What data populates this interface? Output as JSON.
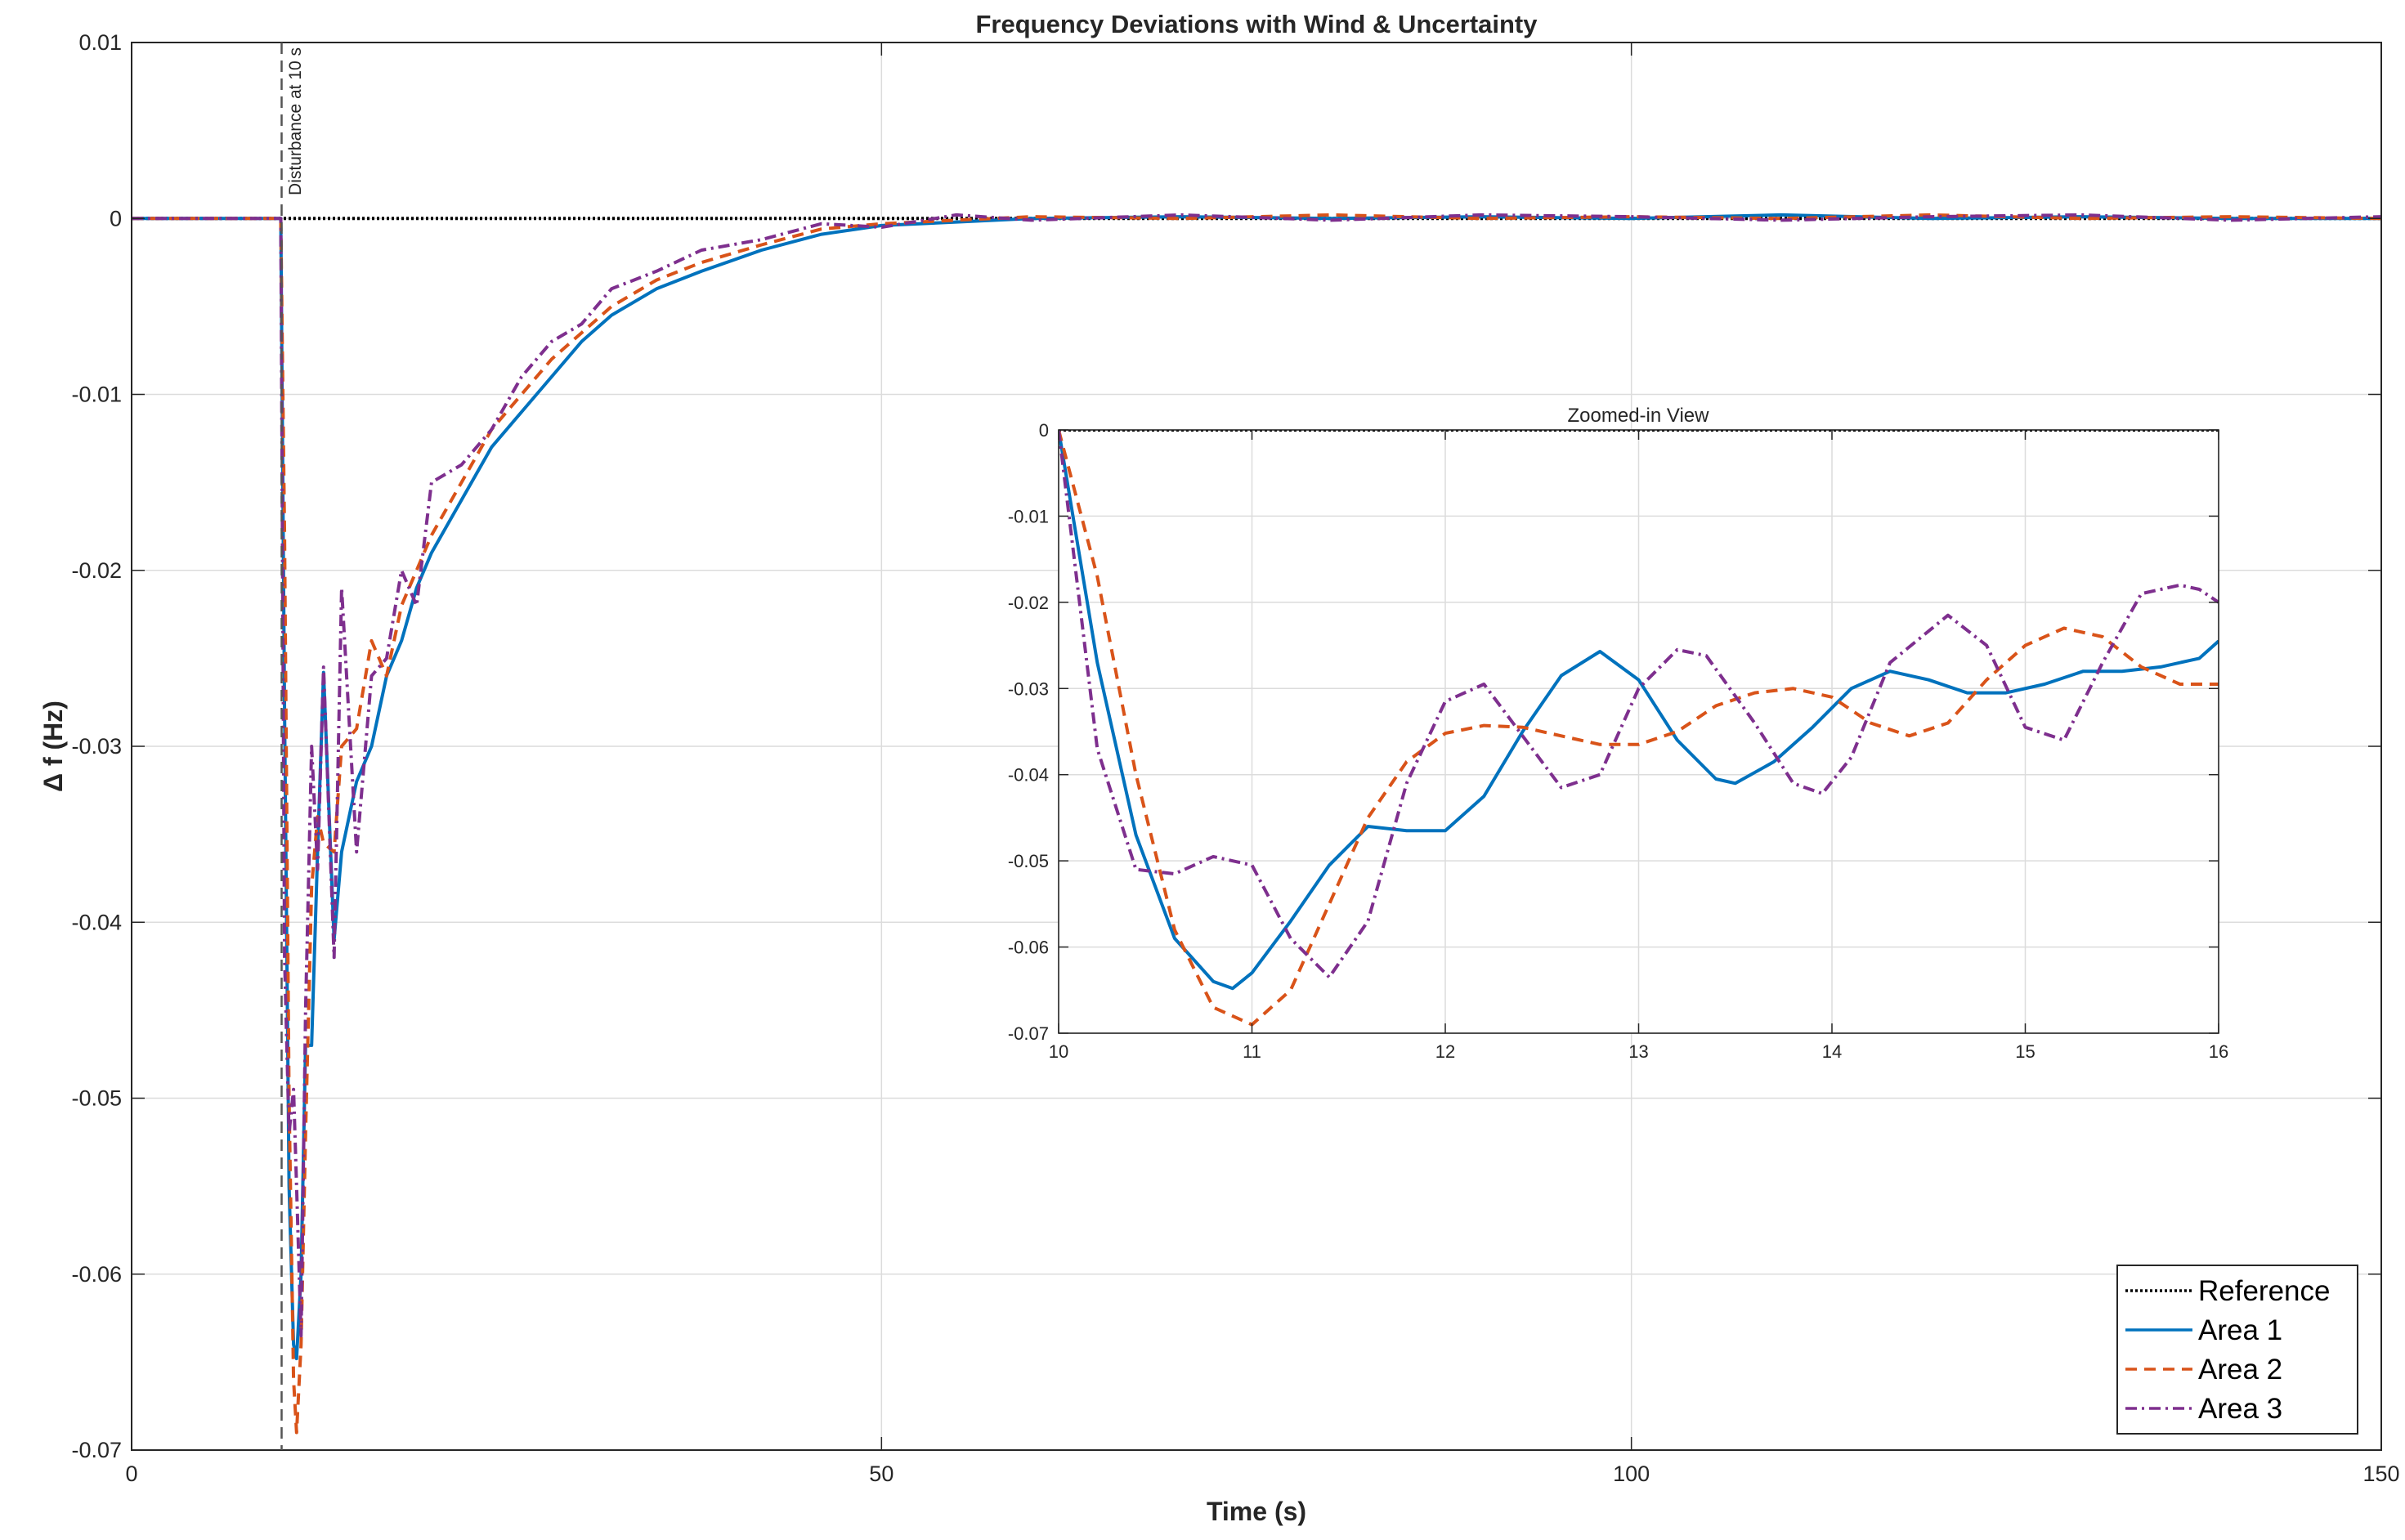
{
  "chart_data": [
    {
      "type": "line",
      "title": "Frequency Deviations with Wind & Uncertainty",
      "xlabel": "Time (s)",
      "ylabel": "Δ f (Hz)",
      "xlim": [
        0,
        150
      ],
      "ylim": [
        -0.07,
        0.01
      ],
      "xticks": [
        0,
        50,
        100,
        150
      ],
      "xtick_labels": [
        "0",
        "50",
        "100",
        "150"
      ],
      "yticks": [
        0.01,
        0,
        -0.01,
        -0.02,
        -0.03,
        -0.04,
        -0.05,
        -0.06,
        -0.07
      ],
      "ytick_labels": [
        "0.01",
        "0",
        "-0.01",
        "-0.02",
        "-0.03",
        "-0.04",
        "-0.05",
        "-0.06",
        "-0.07"
      ],
      "grid": true,
      "legend_position": "bottom-right",
      "annotation": {
        "text": "Disturbance at 10 s",
        "x": 10
      },
      "series": [
        {
          "name": "Reference",
          "color": "#000000",
          "style": "dotted",
          "x": [
            0,
            150
          ],
          "y": [
            0,
            0
          ]
        },
        {
          "name": "Area 1",
          "color": "#0072BD",
          "style": "solid",
          "x": [
            0,
            9.95,
            10.2,
            10.5,
            10.8,
            11.0,
            11.3,
            11.6,
            12.0,
            12.4,
            12.8,
            13.5,
            14,
            15,
            16,
            17,
            18,
            19,
            20,
            22,
            24,
            26,
            28,
            30,
            32,
            35,
            38,
            42,
            46,
            50,
            55,
            60,
            70,
            80,
            90,
            100,
            110,
            120,
            130,
            140,
            150
          ],
          "y": [
            0,
            0,
            -0.028,
            -0.055,
            -0.064,
            -0.0648,
            -0.06,
            -0.047,
            -0.047,
            -0.036,
            -0.0258,
            -0.041,
            -0.036,
            -0.032,
            -0.03,
            -0.026,
            -0.024,
            -0.021,
            -0.019,
            -0.016,
            -0.013,
            -0.011,
            -0.009,
            -0.007,
            -0.0055,
            -0.004,
            -0.003,
            -0.0018,
            -0.0009,
            -0.0004,
            -0.0002,
            0,
            0.0001,
            0,
            0.0001,
            0,
            0.0002,
            0,
            0.0001,
            0,
            0
          ]
        },
        {
          "name": "Area 2",
          "color": "#D95319",
          "style": "dashed",
          "x": [
            0,
            9.95,
            10.2,
            10.5,
            10.8,
            11.0,
            11.3,
            11.6,
            12.0,
            12.4,
            12.8,
            13.5,
            14,
            15,
            16,
            17,
            18,
            19,
            20,
            22,
            24,
            26,
            28,
            30,
            32,
            35,
            38,
            42,
            46,
            50,
            55,
            60,
            70,
            80,
            90,
            100,
            110,
            120,
            130,
            140,
            150
          ],
          "y": [
            0,
            0,
            -0.018,
            -0.05,
            -0.066,
            -0.069,
            -0.064,
            -0.052,
            -0.038,
            -0.034,
            -0.0355,
            -0.036,
            -0.03,
            -0.029,
            -0.024,
            -0.026,
            -0.022,
            -0.02,
            -0.018,
            -0.015,
            -0.012,
            -0.01,
            -0.008,
            -0.0065,
            -0.005,
            -0.0035,
            -0.0025,
            -0.0015,
            -0.0006,
            -0.0003,
            -0.0001,
            0.0001,
            0,
            0.0002,
            0,
            0.0001,
            0,
            0.0002,
            0,
            0.0001,
            0
          ]
        },
        {
          "name": "Area 3",
          "color": "#7E2F8E",
          "style": "dashdot",
          "x": [
            0,
            9.95,
            10.2,
            10.5,
            10.8,
            11.0,
            11.3,
            11.6,
            12.0,
            12.4,
            12.8,
            13.5,
            14,
            15,
            16,
            17,
            18,
            19,
            20,
            22,
            24,
            26,
            28,
            30,
            32,
            35,
            38,
            42,
            46,
            50,
            55,
            60,
            70,
            80,
            90,
            100,
            110,
            120,
            130,
            140,
            150
          ],
          "y": [
            0,
            0,
            -0.042,
            -0.052,
            -0.0495,
            -0.055,
            -0.0635,
            -0.045,
            -0.03,
            -0.037,
            -0.0255,
            -0.042,
            -0.021,
            -0.036,
            -0.026,
            -0.025,
            -0.02,
            -0.022,
            -0.015,
            -0.014,
            -0.012,
            -0.009,
            -0.007,
            -0.006,
            -0.004,
            -0.003,
            -0.0018,
            -0.0012,
            -0.0003,
            -0.0005,
            0.0002,
            -0.0001,
            0.0002,
            -0.0001,
            0.0002,
            0.0001,
            -0.0001,
            0.0001,
            0.0002,
            -0.0001,
            0.0001
          ]
        }
      ]
    },
    {
      "type": "line",
      "title": "Zoomed-in View",
      "xlim": [
        10,
        16
      ],
      "ylim": [
        -0.07,
        0
      ],
      "xticks": [
        10,
        11,
        12,
        13,
        14,
        15,
        16
      ],
      "xtick_labels": [
        "10",
        "11",
        "12",
        "13",
        "14",
        "15",
        "16"
      ],
      "yticks": [
        0,
        -0.01,
        -0.02,
        -0.03,
        -0.04,
        -0.05,
        -0.06,
        -0.07
      ],
      "ytick_labels": [
        "0",
        "-0.01",
        "-0.02",
        "-0.03",
        "-0.04",
        "-0.05",
        "-0.06",
        "-0.07"
      ],
      "grid": true,
      "series": [
        {
          "name": "Reference",
          "color": "#000000",
          "style": "dotted",
          "x": [
            10,
            16
          ],
          "y": [
            0,
            0
          ]
        },
        {
          "name": "Area 1",
          "color": "#0072BD",
          "style": "solid",
          "x": [
            10,
            10.2,
            10.4,
            10.6,
            10.8,
            10.9,
            11.0,
            11.2,
            11.4,
            11.6,
            11.8,
            12.0,
            12.2,
            12.4,
            12.6,
            12.8,
            13.0,
            13.2,
            13.4,
            13.5,
            13.7,
            13.9,
            14.1,
            14.3,
            14.5,
            14.7,
            14.9,
            15.1,
            15.3,
            15.5,
            15.7,
            15.9,
            16.0
          ],
          "y": [
            0,
            -0.027,
            -0.047,
            -0.059,
            -0.064,
            -0.0648,
            -0.063,
            -0.057,
            -0.0505,
            -0.046,
            -0.0465,
            -0.0465,
            -0.0425,
            -0.035,
            -0.0285,
            -0.0257,
            -0.029,
            -0.036,
            -0.0405,
            -0.041,
            -0.0385,
            -0.0345,
            -0.03,
            -0.028,
            -0.029,
            -0.0305,
            -0.0305,
            -0.0295,
            -0.028,
            -0.028,
            -0.0275,
            -0.0265,
            -0.0245
          ]
        },
        {
          "name": "Area 2",
          "color": "#D95319",
          "style": "dashed",
          "x": [
            10,
            10.2,
            10.4,
            10.6,
            10.8,
            11.0,
            11.2,
            11.4,
            11.6,
            11.8,
            12.0,
            12.2,
            12.4,
            12.6,
            12.8,
            13.0,
            13.2,
            13.4,
            13.6,
            13.8,
            14.0,
            14.2,
            14.4,
            14.6,
            14.8,
            15.0,
            15.2,
            15.4,
            15.6,
            15.8,
            16.0
          ],
          "y": [
            0,
            -0.017,
            -0.04,
            -0.058,
            -0.067,
            -0.069,
            -0.065,
            -0.055,
            -0.045,
            -0.0385,
            -0.0352,
            -0.0343,
            -0.0345,
            -0.0355,
            -0.0365,
            -0.0365,
            -0.035,
            -0.032,
            -0.0305,
            -0.03,
            -0.031,
            -0.034,
            -0.0355,
            -0.034,
            -0.029,
            -0.025,
            -0.023,
            -0.024,
            -0.0275,
            -0.0295,
            -0.0295
          ]
        },
        {
          "name": "Area 3",
          "color": "#7E2F8E",
          "style": "dashdot",
          "x": [
            10,
            10.2,
            10.4,
            10.6,
            10.8,
            11.0,
            11.2,
            11.4,
            11.6,
            11.8,
            12.0,
            12.2,
            12.4,
            12.6,
            12.8,
            13.0,
            13.2,
            13.35,
            13.6,
            13.8,
            13.95,
            14.1,
            14.3,
            14.6,
            14.8,
            15.0,
            15.2,
            15.4,
            15.6,
            15.8,
            15.9,
            16.0
          ],
          "y": [
            0,
            -0.037,
            -0.051,
            -0.0515,
            -0.0495,
            -0.0505,
            -0.059,
            -0.0635,
            -0.057,
            -0.041,
            -0.0315,
            -0.0295,
            -0.0355,
            -0.0415,
            -0.04,
            -0.03,
            -0.0255,
            -0.0262,
            -0.034,
            -0.041,
            -0.0422,
            -0.038,
            -0.027,
            -0.0215,
            -0.025,
            -0.0345,
            -0.036,
            -0.027,
            -0.019,
            -0.018,
            -0.0185,
            -0.02
          ]
        }
      ]
    }
  ]
}
